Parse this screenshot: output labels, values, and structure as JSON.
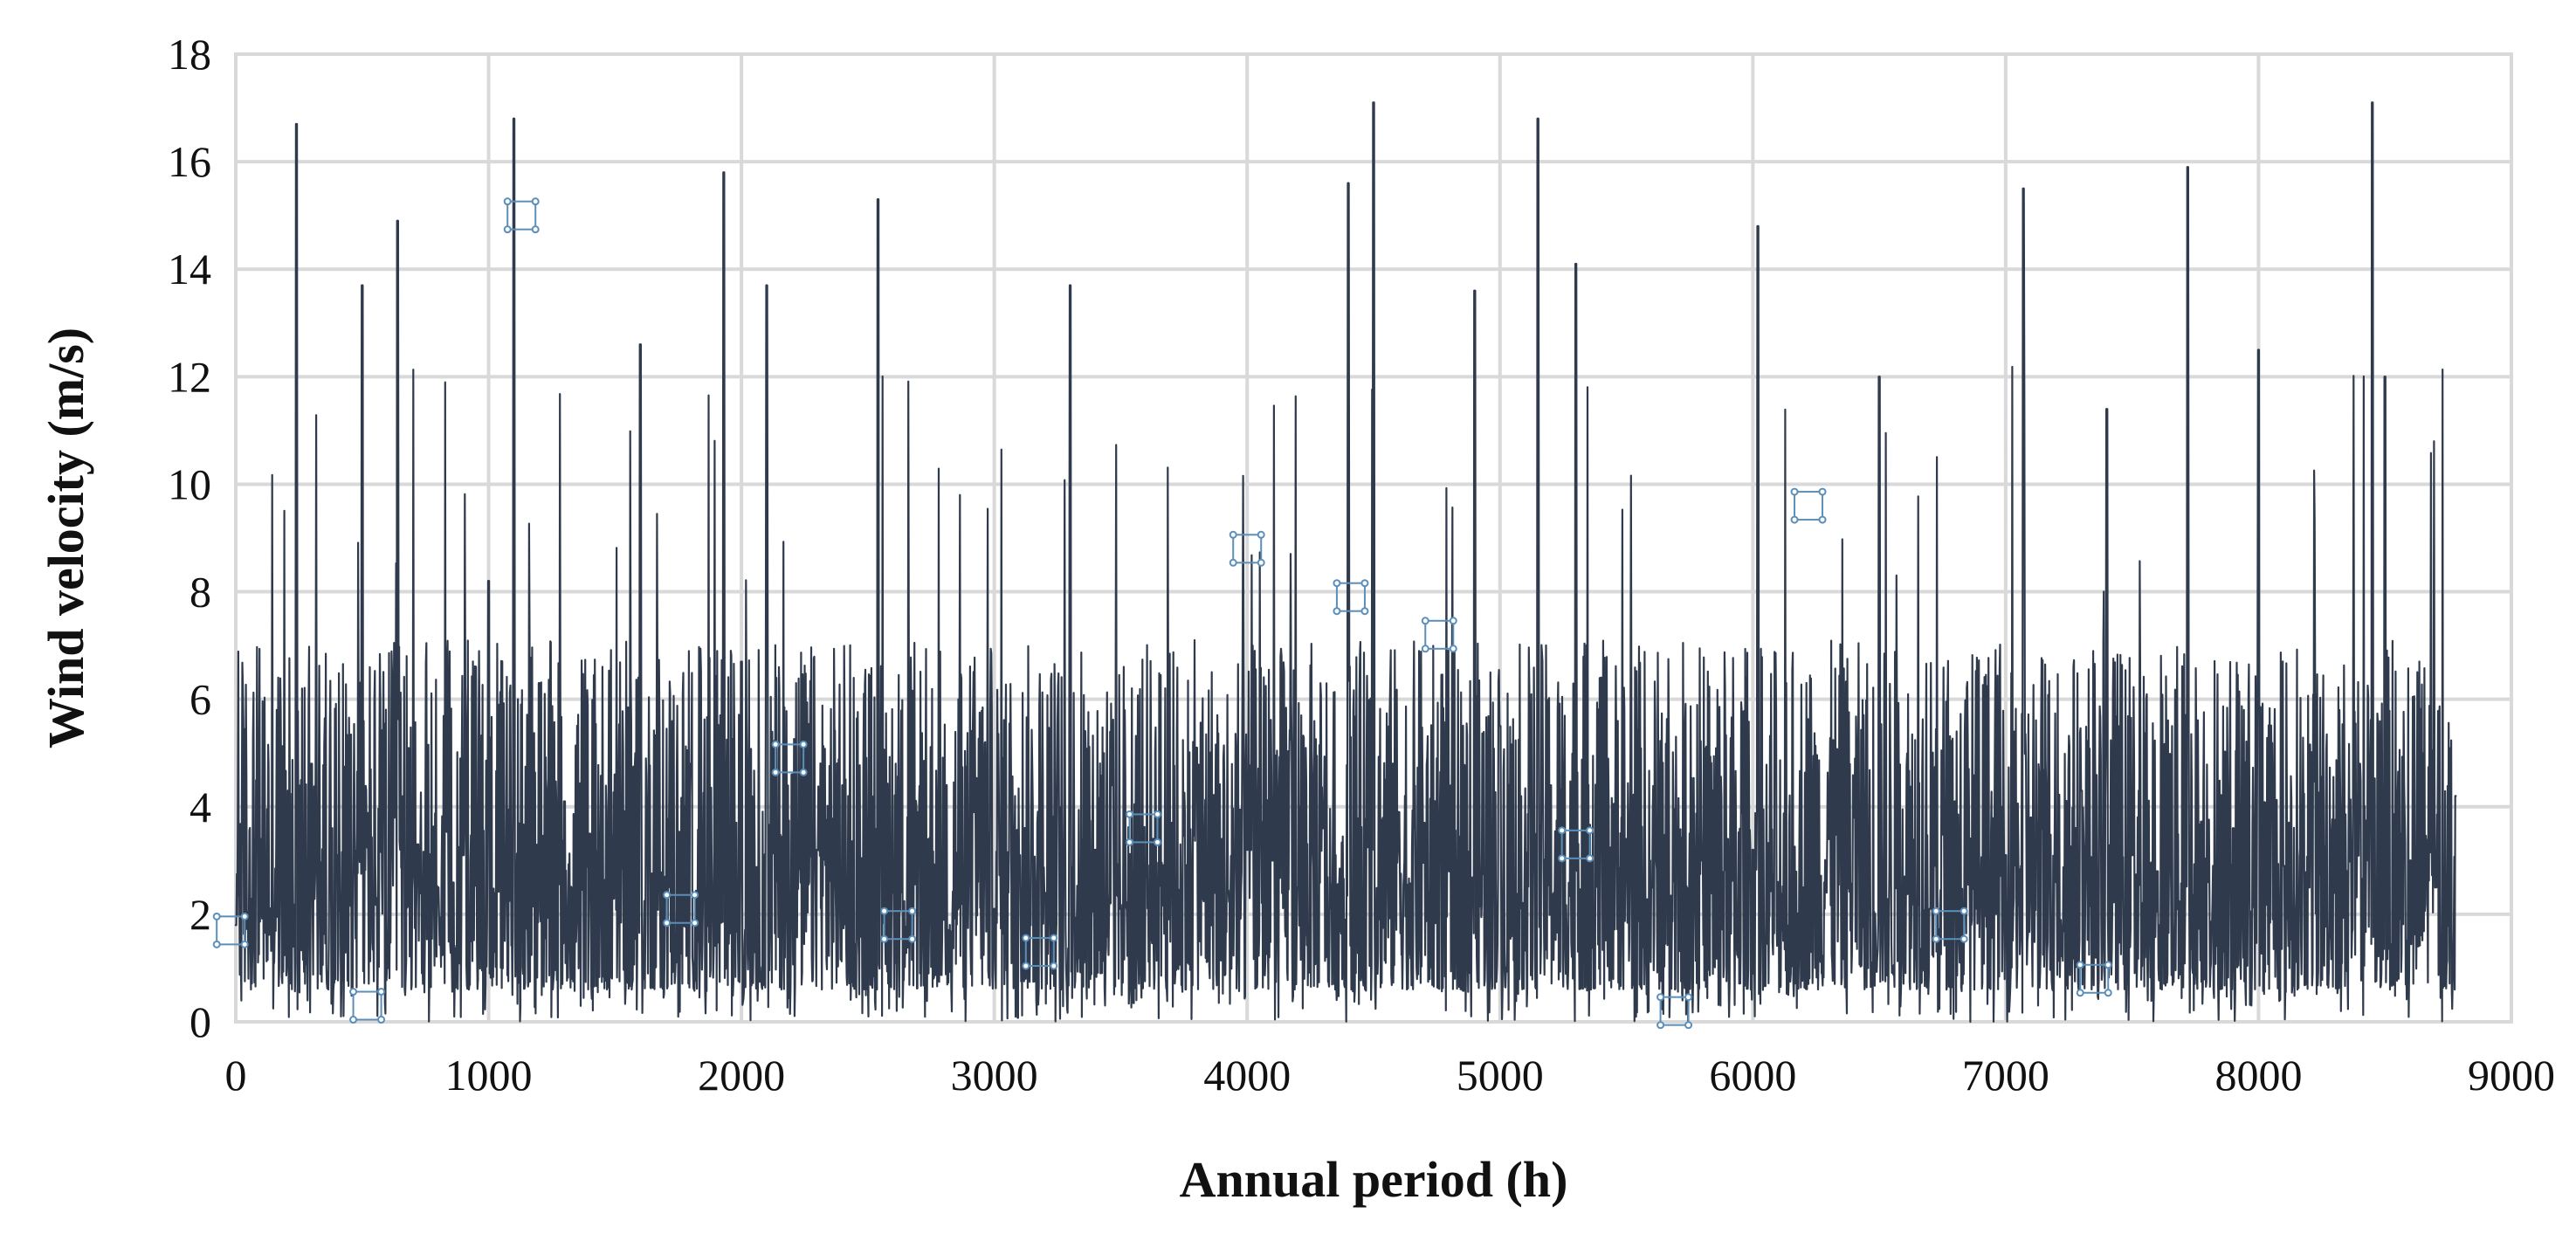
{
  "chart_data": {
    "type": "line",
    "title": "",
    "xlabel": "Annual period (h)",
    "ylabel": "Wind velocity (m/s)",
    "xlim": [
      0,
      9000
    ],
    "ylim": [
      0,
      18
    ],
    "x_ticks": [
      0,
      1000,
      2000,
      3000,
      4000,
      5000,
      6000,
      7000,
      8000,
      9000
    ],
    "y_ticks": [
      0,
      2,
      4,
      6,
      8,
      10,
      12,
      14,
      16,
      18
    ],
    "x_tick_labels": [
      "0",
      "1000",
      "2000",
      "3000",
      "4000",
      "5000",
      "6000",
      "7000",
      "8000",
      "9000"
    ],
    "y_tick_labels": [
      "0",
      "2",
      "4",
      "6",
      "8",
      "10",
      "12",
      "14",
      "16",
      "18"
    ],
    "grid": true,
    "legend": "none",
    "series": [
      {
        "name": "Wind velocity",
        "color": "#2f3a4c",
        "x": [
          0,
          100,
          240,
          300,
          400,
          500,
          600,
          640,
          720,
          800,
          900,
          1000,
          1100,
          1200,
          1300,
          1400,
          1500,
          1600,
          1700,
          1800,
          1930,
          2000,
          2100,
          2200,
          2300,
          2400,
          2540,
          2600,
          2700,
          2800,
          2900,
          3000,
          3100,
          3200,
          3300,
          3400,
          3500,
          3600,
          3700,
          3800,
          3900,
          4000,
          4100,
          4200,
          4300,
          4400,
          4500,
          4600,
          4700,
          4800,
          4900,
          5000,
          5150,
          5200,
          5300,
          5400,
          5500,
          5600,
          5700,
          5800,
          5900,
          6000,
          6020,
          6100,
          6200,
          6300,
          6400,
          6500,
          6600,
          6700,
          6800,
          6900,
          7000,
          7070,
          7100,
          7200,
          7300,
          7400,
          7500,
          7600,
          7720,
          7800,
          7900,
          8000,
          8100,
          8200,
          8300,
          8400,
          8450,
          8500,
          8600,
          8700,
          8780
        ],
        "values": [
          1.8,
          3.4,
          16.7,
          4.8,
          3.1,
          13.7,
          1.0,
          14.9,
          3.3,
          2.5,
          3.1,
          8.2,
          16.8,
          6.3,
          4.1,
          3.5,
          4.6,
          12.6,
          2.7,
          4.8,
          15.8,
          6.7,
          13.7,
          4.6,
          3.2,
          4.4,
          15.3,
          2.4,
          3.9,
          1.9,
          2.6,
          2.1,
          3.1,
          2.4,
          13.7,
          3.2,
          2.1,
          2.7,
          3.7,
          5.1,
          3.4,
          3.2,
          3.0,
          2.5,
          3.6,
          15.6,
          17.1,
          3.9,
          3.7,
          2.8,
          13.6,
          5.5,
          16.8,
          4.4,
          14.1,
          6.4,
          3.4,
          2.5,
          3.6,
          3.0,
          3.4,
          3.2,
          14.8,
          2.6,
          2.5,
          3.4,
          3.8,
          12.0,
          2.7,
          2.1,
          4.1,
          2.6,
          3.1,
          15.5,
          3.8,
          2.6,
          4.3,
          11.4,
          3.1,
          2.8,
          15.9,
          2.6,
          3.6,
          12.5,
          2.9,
          2.5,
          2.4,
          4.8,
          17.1,
          12.0,
          3.0,
          2.5,
          4.2
        ]
      }
    ]
  }
}
